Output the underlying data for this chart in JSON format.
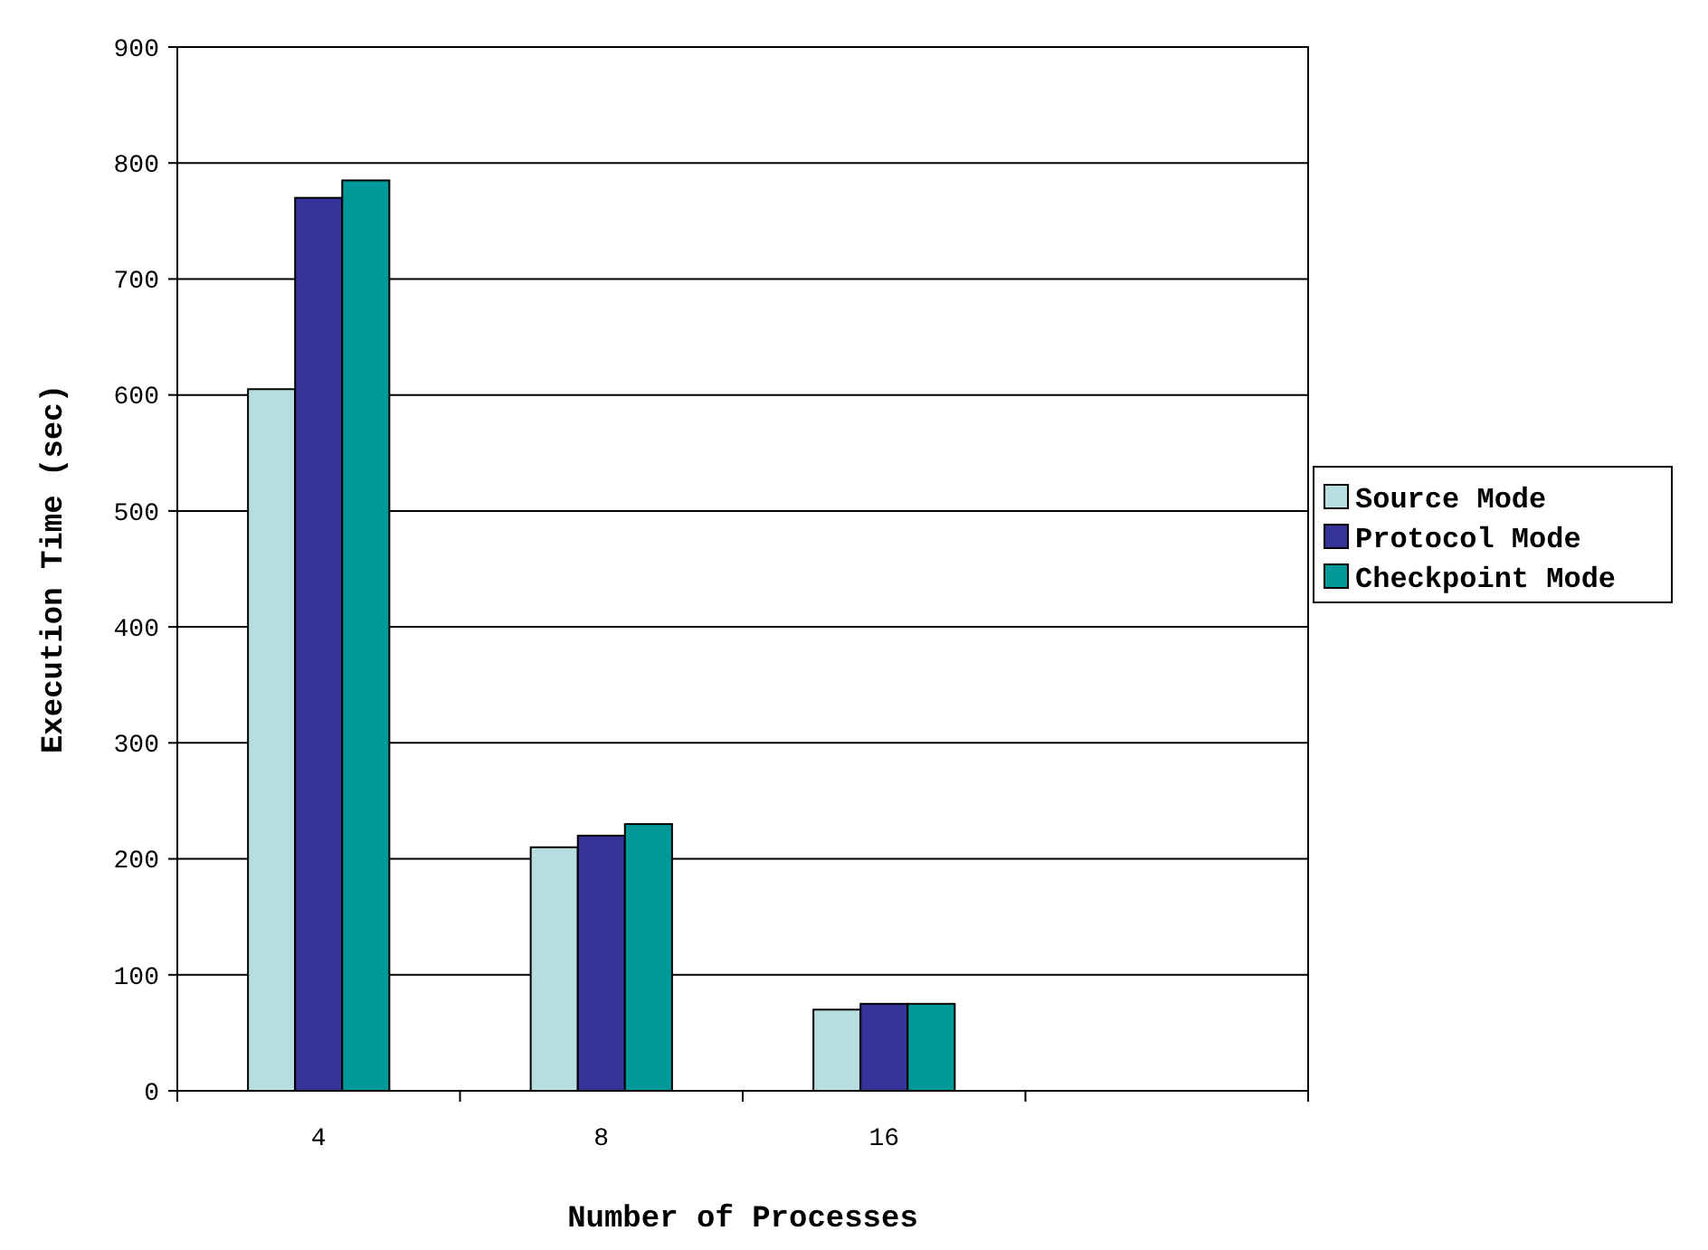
{
  "chart_data": {
    "type": "bar",
    "xlabel": "Number of Processes",
    "ylabel": "Execution Time (sec)",
    "categories": [
      "4",
      "8",
      "16",
      null
    ],
    "series": [
      {
        "name": "Source Mode",
        "color": "#b8dde0",
        "values": [
          605,
          210,
          70,
          null
        ]
      },
      {
        "name": "Protocol Mode",
        "color": "#333399",
        "values": [
          770,
          220,
          75,
          null
        ]
      },
      {
        "name": "Checkpoint Mode",
        "color": "#009999",
        "values": [
          785,
          230,
          75,
          null
        ]
      }
    ],
    "ylim": [
      0,
      900
    ],
    "yticks": [
      0,
      100,
      200,
      300,
      400,
      500,
      600,
      700,
      800,
      900
    ],
    "grid": "y",
    "legend": "right"
  }
}
